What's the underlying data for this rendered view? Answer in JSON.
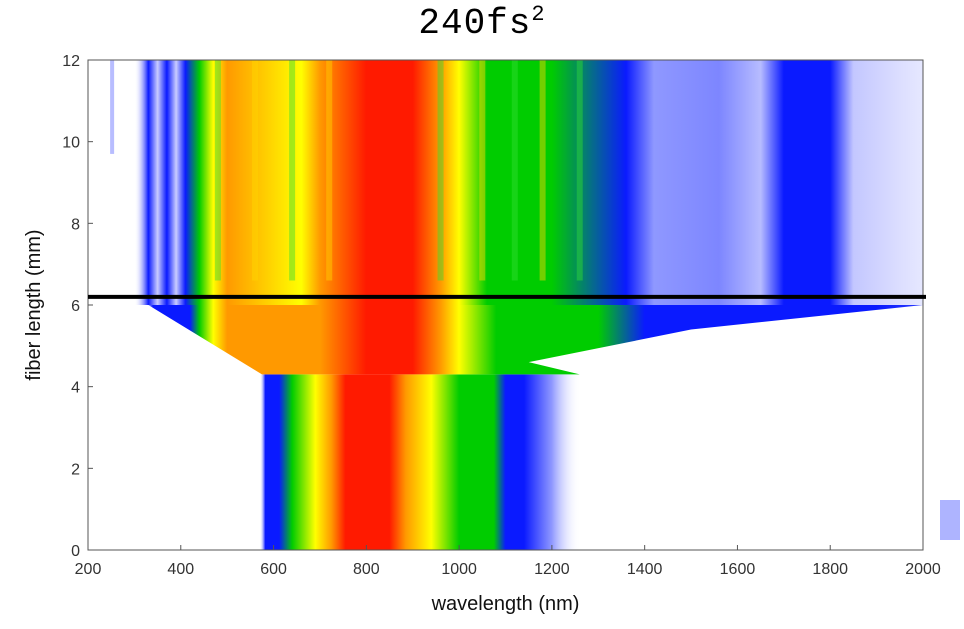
{
  "title_main": "240fs",
  "title_sup": "2",
  "chart_data": {
    "type": "heatmap",
    "title": "240fs²",
    "xlabel": "wavelength (nm)",
    "ylabel": "fiber length (mm)",
    "xlim": [
      200,
      2000
    ],
    "ylim": [
      0,
      12
    ],
    "xticks": [
      200,
      400,
      600,
      800,
      1000,
      1200,
      1400,
      1600,
      1800,
      2000
    ],
    "yticks": [
      0,
      2,
      4,
      6,
      8,
      10,
      12
    ],
    "colormap": [
      "#ffffff",
      "#0a1aff",
      "#00cc00",
      "#ffff00",
      "#ff9900",
      "#ff1a00"
    ],
    "annotation": {
      "type": "horizontal-line",
      "y": 6.2,
      "color": "#000000"
    },
    "initial_spectrum": {
      "center_nm": 850,
      "edges_nm": [
        575,
        1260
      ]
    },
    "broadening_onset_mm": 6.0
  }
}
